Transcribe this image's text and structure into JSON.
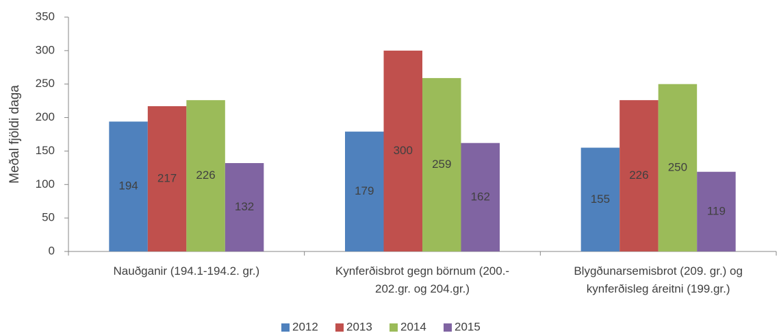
{
  "chart_data": {
    "type": "bar",
    "y_label": "Meðal fjöldi daga",
    "categories": [
      [
        "Nauðganir  (194.1-194.2. gr.)"
      ],
      [
        "Kynferðisbrot gegn börnum (200.-",
        "202.gr. og 204.gr.)"
      ],
      [
        "Blygðunarsemisbrot (209. gr.) og",
        "kynferðisleg áreitni (199.gr.)"
      ]
    ],
    "series": [
      {
        "name": "2012",
        "color": "#4f81bd",
        "values": [
          194,
          179,
          155
        ]
      },
      {
        "name": "2013",
        "color": "#c0504d",
        "values": [
          217,
          300,
          226
        ]
      },
      {
        "name": "2014",
        "color": "#9bbb59",
        "values": [
          226,
          259,
          250
        ]
      },
      {
        "name": "2015",
        "color": "#8064a2",
        "values": [
          132,
          162,
          119
        ]
      }
    ],
    "ylim": [
      0,
      350
    ],
    "yticks": [
      0,
      50,
      100,
      150,
      200,
      250,
      300,
      350
    ],
    "grid": false,
    "legend": "bottom"
  }
}
